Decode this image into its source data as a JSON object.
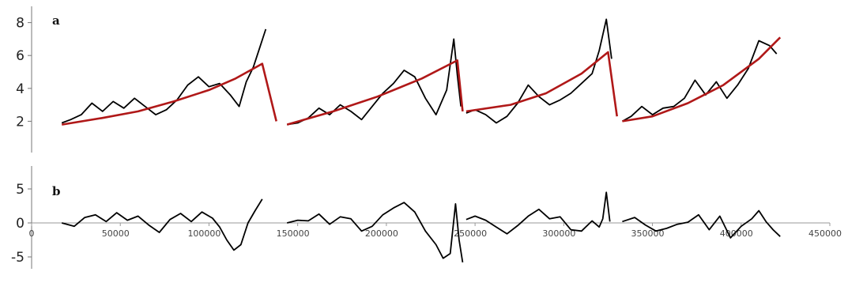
{
  "chart_data": [
    {
      "panel_label": "a",
      "type": "line",
      "ylim": [
        0,
        8.5
      ],
      "yticks": [
        2,
        4,
        6,
        8
      ],
      "grid": false,
      "series": [
        {
          "role": "observed",
          "color": "#000000",
          "segments": [
            {
              "x": [
                17000,
                22000,
                28000,
                34000,
                40000,
                46000,
                52000,
                58000,
                64000,
                70000,
                76000,
                82000,
                88000,
                94000,
                100000,
                106000,
                112000,
                117000,
                121000,
                125000,
                129000,
                132000
              ],
              "y": [
                1.9,
                2.1,
                2.4,
                3.1,
                2.6,
                3.2,
                2.8,
                3.4,
                2.9,
                2.4,
                2.7,
                3.3,
                4.2,
                4.7,
                4.1,
                4.3,
                3.6,
                2.9,
                4.4,
                5.3,
                6.6,
                7.6
              ]
            },
            {
              "x": [
                144000,
                150000,
                156000,
                162000,
                168000,
                174000,
                180000,
                186000,
                192000,
                198000,
                204000,
                210000,
                216000,
                222000,
                228000,
                234000,
                238000,
                240000,
                242000
              ],
              "y": [
                1.8,
                1.9,
                2.2,
                2.8,
                2.4,
                3.0,
                2.6,
                2.1,
                2.9,
                3.7,
                4.3,
                5.1,
                4.7,
                3.4,
                2.4,
                3.9,
                7.0,
                4.8,
                2.9
              ]
            },
            {
              "x": [
                245000,
                250000,
                256000,
                262000,
                268000,
                274000,
                280000,
                286000,
                292000,
                298000,
                304000,
                310000,
                316000,
                320000,
                324000,
                327000
              ],
              "y": [
                2.5,
                2.7,
                2.4,
                1.9,
                2.3,
                3.1,
                4.2,
                3.5,
                3.0,
                3.3,
                3.7,
                4.3,
                4.9,
                6.3,
                8.2,
                5.8
              ]
            },
            {
              "x": [
                333000,
                338000,
                344000,
                350000,
                356000,
                362000,
                368000,
                374000,
                380000,
                386000,
                392000,
                398000,
                404000,
                410000,
                416000,
                420000
              ],
              "y": [
                2.0,
                2.3,
                2.9,
                2.4,
                2.8,
                2.9,
                3.4,
                4.5,
                3.6,
                4.4,
                3.4,
                4.2,
                5.2,
                6.9,
                6.6,
                6.1
              ]
            }
          ]
        },
        {
          "role": "fitted trend",
          "color": "#b01818",
          "segments": [
            {
              "x": [
                17000,
                40000,
                60000,
                80000,
                100000,
                115000,
                130000,
                138000
              ],
              "y": [
                1.8,
                2.2,
                2.6,
                3.2,
                3.9,
                4.6,
                5.5,
                2.0
              ]
            },
            {
              "x": [
                144000,
                170000,
                195000,
                220000,
                240000,
                243000
              ],
              "y": [
                1.8,
                2.6,
                3.5,
                4.6,
                5.7,
                2.6
              ]
            },
            {
              "x": [
                245000,
                270000,
                290000,
                310000,
                325000,
                330000
              ],
              "y": [
                2.6,
                3.0,
                3.7,
                4.9,
                6.2,
                2.3
              ]
            },
            {
              "x": [
                333000,
                350000,
                370000,
                390000,
                410000,
                422000
              ],
              "y": [
                2.0,
                2.3,
                3.1,
                4.2,
                5.8,
                7.1
              ]
            }
          ]
        }
      ]
    },
    {
      "panel_label": "b",
      "type": "line",
      "xlim": [
        0,
        450000
      ],
      "ylim": [
        -6,
        6
      ],
      "yticks": [
        5,
        0,
        -5
      ],
      "xticks": [
        0,
        50000,
        100000,
        150000,
        200000,
        250000,
        300000,
        350000,
        400000,
        450000
      ],
      "grid": false,
      "series": [
        {
          "role": "residual",
          "color": "#000000",
          "segments": [
            {
              "x": [
                17000,
                24000,
                30000,
                36000,
                42000,
                48000,
                54000,
                60000,
                66000,
                72000,
                78000,
                84000,
                90000,
                96000,
                102000,
                106000,
                110000,
                114000,
                118000,
                122000,
                126000,
                130000
              ],
              "y": [
                0,
                -0.5,
                0.8,
                1.2,
                0.2,
                1.5,
                0.4,
                1.0,
                -0.3,
                -1.4,
                0.5,
                1.4,
                0.2,
                1.6,
                0.7,
                -0.6,
                -2.5,
                -4.0,
                -3.2,
                0.0,
                1.8,
                3.5
              ]
            },
            {
              "x": [
                144000,
                150000,
                156000,
                162000,
                168000,
                174000,
                180000,
                186000,
                192000,
                198000,
                204000,
                210000,
                216000,
                222000,
                228000,
                232000,
                236000,
                239000,
                241000,
                243000
              ],
              "y": [
                0,
                0.4,
                0.3,
                1.3,
                -0.2,
                0.9,
                0.6,
                -1.2,
                -0.5,
                1.2,
                2.2,
                3.0,
                1.6,
                -1.2,
                -3.2,
                -5.2,
                -4.5,
                2.8,
                -2.5,
                -5.8
              ]
            },
            {
              "x": [
                245000,
                250000,
                256000,
                262000,
                268000,
                274000,
                280000,
                286000,
                292000,
                298000,
                304000,
                310000,
                316000,
                320000,
                322000,
                324000,
                326000
              ],
              "y": [
                0.5,
                1.0,
                0.4,
                -0.6,
                -1.6,
                -0.4,
                1.0,
                2.0,
                0.6,
                0.9,
                -1.0,
                -1.2,
                0.3,
                -0.6,
                0.6,
                4.5,
                0.2
              ]
            },
            {
              "x": [
                333000,
                340000,
                346000,
                352000,
                358000,
                364000,
                370000,
                376000,
                382000,
                388000,
                394000,
                400000,
                406000,
                410000,
                414000,
                418000,
                422000
              ],
              "y": [
                0.2,
                0.8,
                -0.3,
                -1.2,
                -0.8,
                -0.2,
                0.1,
                1.2,
                -1.0,
                1.0,
                -2.2,
                -0.5,
                0.6,
                1.8,
                0.2,
                -1.0,
                -2.0
              ]
            }
          ]
        }
      ]
    }
  ]
}
